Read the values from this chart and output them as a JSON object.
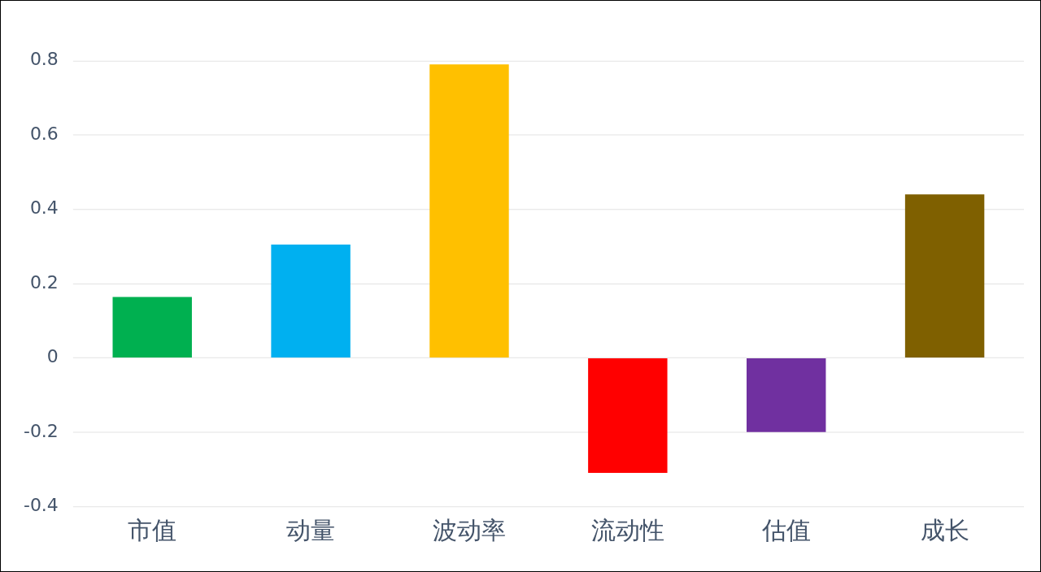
{
  "chart_data": {
    "type": "bar",
    "categories": [
      "市值",
      "动量",
      "波动率",
      "流动性",
      "估值",
      "成长"
    ],
    "values": [
      0.164,
      0.305,
      0.79,
      -0.31,
      -0.2,
      0.44
    ],
    "colors": [
      "#00b050",
      "#00b0f0",
      "#ffc000",
      "#ff0000",
      "#7030a0",
      "#7f6000"
    ],
    "ylim": [
      -0.4,
      0.8
    ],
    "yticks": [
      -0.4,
      -0.2,
      0,
      0.2,
      0.4,
      0.6,
      0.8
    ],
    "grid": "y",
    "legend": false
  }
}
